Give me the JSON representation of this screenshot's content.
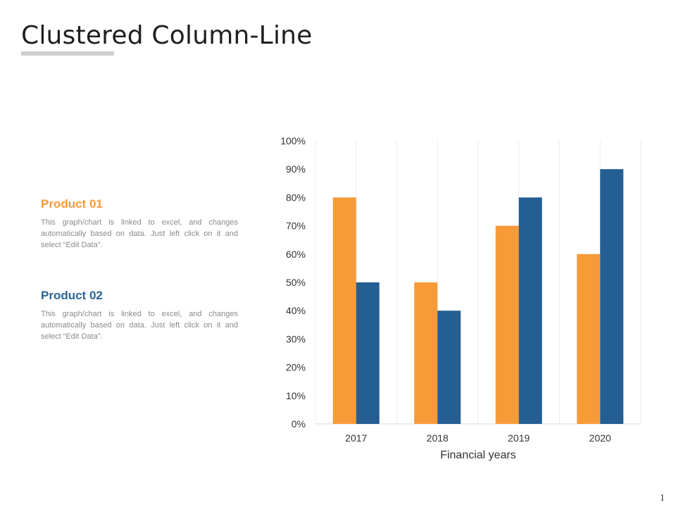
{
  "slide": {
    "title": "Clustered Column-Line",
    "page_number": "1"
  },
  "legend": [
    {
      "title": "Product 01",
      "color": "#f79a38",
      "description": "This graph/chart is linked to excel, and changes automatically based on data. Just left click on it and select “Edit Data”."
    },
    {
      "title": "Product 02",
      "color": "#2a6496",
      "description": "This graph/chart is linked to excel, and changes automatically based on data. Just left click on it and select “Edit Data”."
    }
  ],
  "chart_data": {
    "type": "bar",
    "categories": [
      "2017",
      "2018",
      "2019",
      "2020"
    ],
    "series": [
      {
        "name": "Product 01",
        "color": "#f79a38",
        "values": [
          80,
          50,
          70,
          60
        ]
      },
      {
        "name": "Product 02",
        "color": "#245e92",
        "values": [
          50,
          40,
          80,
          90
        ]
      }
    ],
    "xlabel": "Financial years",
    "ylabel": "",
    "ylim": [
      0,
      100
    ],
    "yticks": [
      "0%",
      "10%",
      "20%",
      "30%",
      "40%",
      "50%",
      "60%",
      "70%",
      "80%",
      "90%",
      "100%"
    ],
    "grid": "vertical",
    "legend": "none"
  }
}
